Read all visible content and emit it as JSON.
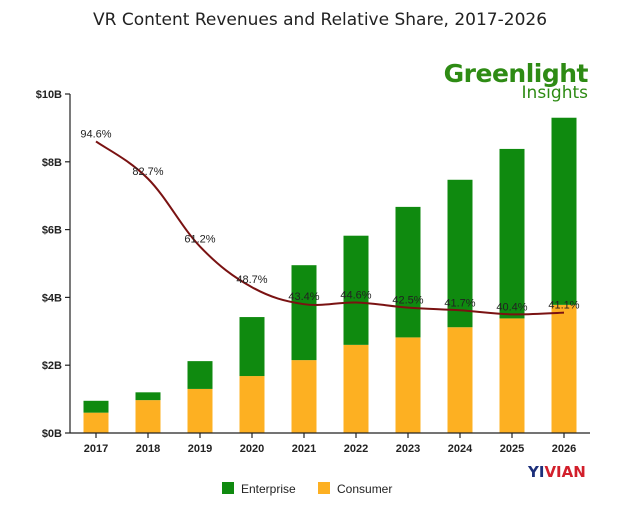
{
  "brand": {
    "main": "Greenlight",
    "sub": "Insights"
  },
  "watermark": {
    "left": "YI",
    "right": "VIAN",
    "left_color": "#1c2f7a",
    "right_color": "#d21f2b"
  },
  "colors": {
    "enterprise": "#0f8a0f",
    "consumer": "#fdb022",
    "share_line": "#7a1212",
    "axis": "#222222"
  },
  "chart_data": {
    "type": "bar",
    "stacked": true,
    "title": "VR Content Revenues and Relative Share, 2017-2026",
    "categories": [
      "2017",
      "2018",
      "2019",
      "2020",
      "2021",
      "2022",
      "2023",
      "2024",
      "2025",
      "2026"
    ],
    "series": [
      {
        "name": "Consumer",
        "values": [
          0.6,
          0.97,
          1.3,
          1.68,
          2.15,
          2.6,
          2.82,
          3.12,
          3.38,
          3.78
        ]
      },
      {
        "name": "Enterprise",
        "values": [
          0.35,
          0.23,
          0.82,
          1.74,
          2.8,
          3.22,
          3.85,
          4.35,
          5.0,
          5.52
        ]
      }
    ],
    "share_line": {
      "labels": [
        "94.6%",
        "82.7%",
        "61.2%",
        "48.7%",
        "43.4%",
        "44.6%",
        "42.5%",
        "41.7%",
        "40.4%",
        "41.1%"
      ],
      "values": [
        8.6,
        7.5,
        5.5,
        4.3,
        3.8,
        3.85,
        3.7,
        3.62,
        3.5,
        3.55
      ]
    },
    "y_axis": {
      "range": [
        0,
        10
      ],
      "ticks": [
        0,
        2,
        4,
        6,
        8,
        10
      ],
      "tick_labels": [
        "$0B",
        "$2B",
        "$4B",
        "$6B",
        "$8B",
        "$10B"
      ]
    },
    "legend": {
      "position": "bottom",
      "items": [
        "Enterprise",
        "Consumer"
      ]
    },
    "grid": false
  }
}
